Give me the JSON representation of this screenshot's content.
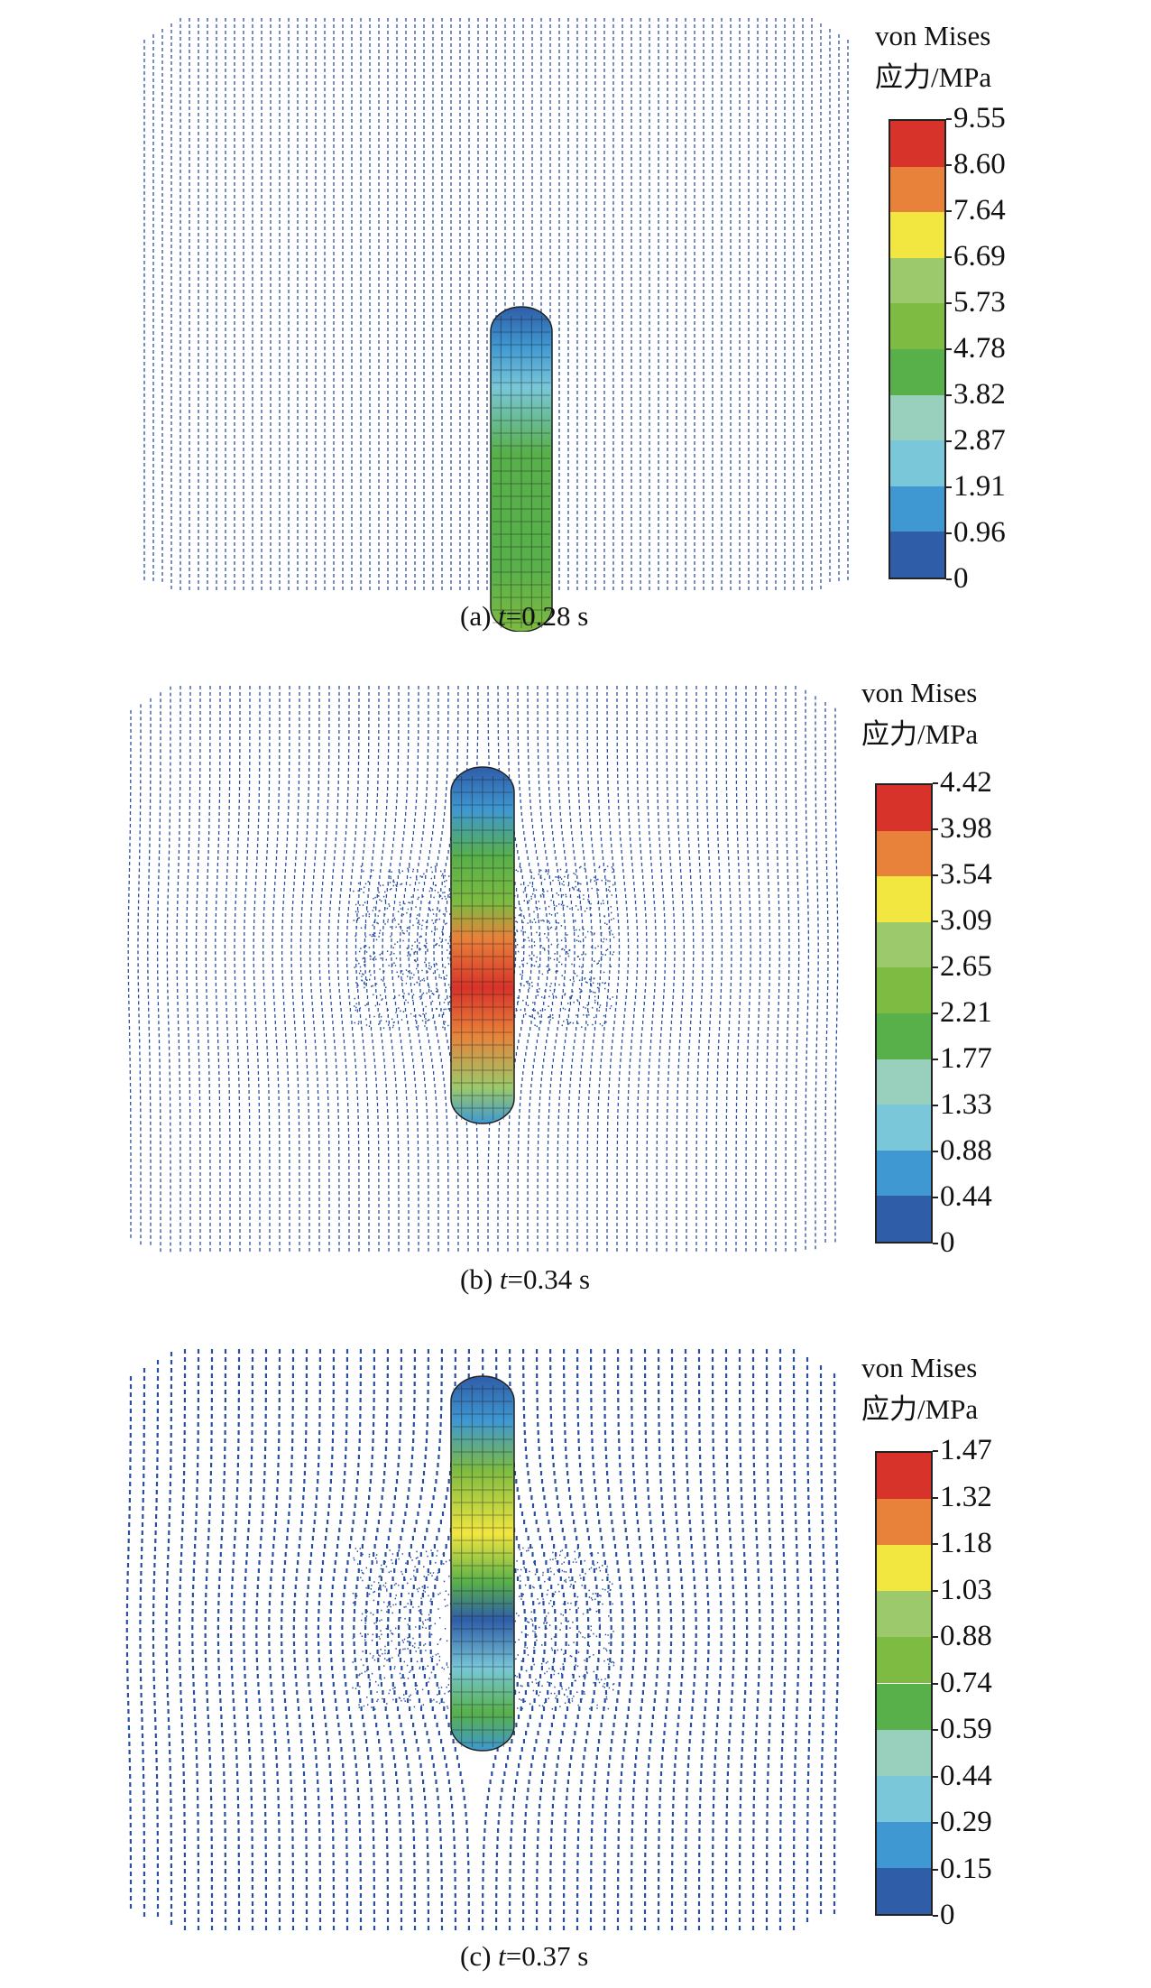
{
  "panels": [
    {
      "legend": {
        "line1": "von Mises",
        "line2": "应力/MPa",
        "ticks": [
          "9.55",
          "8.60",
          "7.64",
          "6.69",
          "5.73",
          "4.78",
          "3.82",
          "2.87",
          "1.91",
          "0.96",
          "0"
        ]
      },
      "caption": {
        "label": "(a)",
        "var": "t",
        "value": "=0.28 s"
      }
    },
    {
      "legend": {
        "line1": "von Mises",
        "line2": "应力/MPa",
        "ticks": [
          "4.42",
          "3.98",
          "3.54",
          "3.09",
          "2.65",
          "2.21",
          "1.77",
          "1.33",
          "0.88",
          "0.44",
          "0"
        ]
      },
      "caption": {
        "label": "(b)",
        "var": "t",
        "value": "=0.34 s"
      }
    },
    {
      "legend": {
        "line1": "von Mises",
        "line2": "应力/MPa",
        "ticks": [
          "1.47",
          "1.32",
          "1.18",
          "1.03",
          "0.88",
          "0.74",
          "0.59",
          "0.44",
          "0.29",
          "0.15",
          "0"
        ]
      },
      "caption": {
        "label": "(c)",
        "var": "t",
        "value": "=0.37 s"
      }
    }
  ],
  "colormap": [
    "#d8332a",
    "#e8823a",
    "#f2e640",
    "#9bc96b",
    "#7dbb42",
    "#58b04a",
    "#98cfbd",
    "#79c7d8",
    "#3f98d2",
    "#2f5da8"
  ],
  "particle_color": "#2a4fa0"
}
